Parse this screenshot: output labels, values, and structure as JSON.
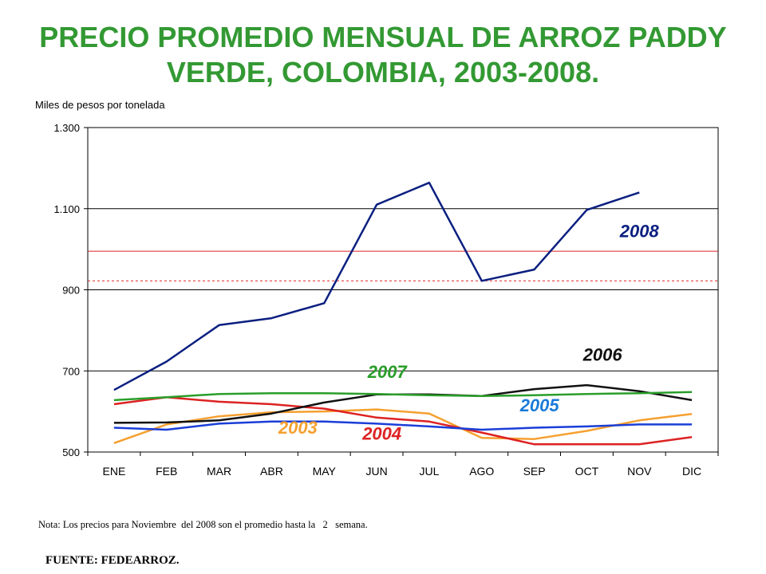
{
  "title_lines": [
    "PRECIO PROMEDIO MENSUAL DE ARROZ PADDY",
    "VERDE, COLOMBIA, 2003-2008."
  ],
  "note": "Nota: Los precios para Noviembre  del 2008 son el promedio hasta la   2   semana.",
  "source": "FUENTE: FEDEARROZ.",
  "chart_data": {
    "type": "line",
    "ylabel": "Miles de pesos por tonelada",
    "categories": [
      "ENE",
      "FEB",
      "MAR",
      "ABR",
      "MAY",
      "JUN",
      "JUL",
      "AGO",
      "SEP",
      "OCT",
      "NOV",
      "DIC"
    ],
    "ylim": [
      500,
      1300
    ],
    "yticks": [
      500,
      700,
      900,
      1100,
      1300
    ],
    "ytick_labels": [
      "500",
      "700",
      "900",
      "1.100",
      "1.300"
    ],
    "grid": true,
    "reference_lines": [
      {
        "value": 995,
        "style": "solid",
        "color": "#dd2222"
      },
      {
        "value": 922,
        "style": "dashed",
        "color": "#dd2222"
      }
    ],
    "series": [
      {
        "name": "2003",
        "color": "#f5a030",
        "values": [
          522,
          568,
          588,
          598,
          600,
          605,
          595,
          535,
          532,
          552,
          578,
          594
        ]
      },
      {
        "name": "2004",
        "color": "#dd2222",
        "values": [
          618,
          635,
          624,
          618,
          607,
          585,
          575,
          548,
          519,
          519,
          519,
          537
        ]
      },
      {
        "name": "2005",
        "color": "#1a3ed8",
        "values": [
          560,
          555,
          570,
          575,
          575,
          570,
          563,
          555,
          560,
          563,
          568,
          568
        ]
      },
      {
        "name": "2006",
        "color": "#111111",
        "values": [
          572,
          573,
          578,
          595,
          622,
          642,
          642,
          638,
          655,
          665,
          650,
          628
        ]
      },
      {
        "name": "2007",
        "color": "#2a9e2a",
        "values": [
          628,
          635,
          643,
          645,
          645,
          643,
          640,
          638,
          640,
          643,
          645,
          648
        ]
      },
      {
        "name": "2008",
        "color": "#0a1f80",
        "values": [
          653,
          723,
          813,
          830,
          867,
          1110,
          1164,
          922,
          950,
          1097,
          1140,
          null
        ]
      }
    ],
    "series_labels": [
      {
        "text": "2003",
        "color": "#f5a030",
        "x": 4.5,
        "y": 545
      },
      {
        "text": "2004",
        "color": "#dd2222",
        "x": 6.1,
        "y": 530
      },
      {
        "text": "2005",
        "color": "#1a7ad8",
        "x": 9.1,
        "y": 600
      },
      {
        "text": "2006",
        "color": "#111111",
        "x": 10.3,
        "y": 725
      },
      {
        "text": "2007",
        "color": "#2a9e2a",
        "x": 6.2,
        "y": 683
      },
      {
        "text": "2008",
        "color": "#0a1f80",
        "x": 11.0,
        "y": 1030
      }
    ]
  }
}
